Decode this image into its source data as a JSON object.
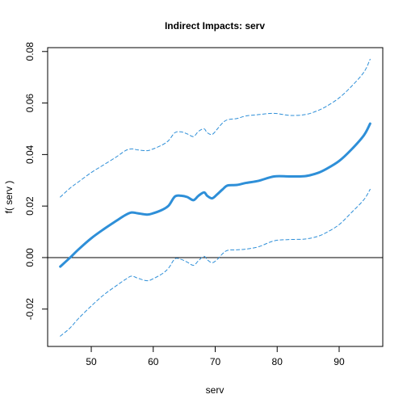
{
  "chart_data": {
    "type": "line",
    "title": "Indirect Impacts:  serv",
    "xlabel": "serv",
    "ylabel": "f( serv )",
    "xlim": [
      42.96,
      97.04
    ],
    "ylim": [
      -0.0345,
      0.0815
    ],
    "x_ticks": [
      50,
      60,
      70,
      80,
      90
    ],
    "y_ticks": [
      -0.02,
      0.0,
      0.02,
      0.04,
      0.06,
      0.08
    ],
    "x_tick_labels": [
      "50",
      "60",
      "70",
      "80",
      "90"
    ],
    "y_tick_labels": [
      "-0.02",
      "0.00",
      "0.02",
      "0.04",
      "0.06",
      "0.08"
    ],
    "reference_line_y": 0.0,
    "grid": false,
    "legend": "none",
    "colors": {
      "series": "#2e8fd8",
      "axis": "#000000",
      "reference": "#000000"
    },
    "x": [
      45.0,
      46.5,
      48.0,
      50.0,
      52.0,
      54.0,
      55.5,
      56.5,
      57.5,
      59.0,
      60.0,
      61.5,
      62.5,
      63.5,
      64.5,
      65.5,
      66.5,
      67.3,
      68.2,
      68.7,
      69.5,
      70.3,
      71.2,
      72.0,
      73.5,
      75.0,
      77.0,
      79.5,
      82.0,
      84.5,
      86.5,
      88.0,
      90.0,
      92.0,
      94.0,
      95.0
    ],
    "series": [
      {
        "role": "estimate",
        "style": "solid",
        "values": [
          -0.0035,
          -0.0002,
          0.0033,
          0.0075,
          0.011,
          0.0142,
          0.0165,
          0.0175,
          0.0172,
          0.0167,
          0.0172,
          0.0186,
          0.0202,
          0.0237,
          0.024,
          0.0235,
          0.0223,
          0.024,
          0.0253,
          0.024,
          0.023,
          0.0245,
          0.0265,
          0.028,
          0.0282,
          0.029,
          0.0298,
          0.0315,
          0.0315,
          0.0316,
          0.0328,
          0.0345,
          0.0375,
          0.042,
          0.0475,
          0.052
        ]
      },
      {
        "role": "upper",
        "style": "dashed",
        "values": [
          0.0235,
          0.0268,
          0.0295,
          0.033,
          0.036,
          0.039,
          0.0415,
          0.0422,
          0.0418,
          0.0415,
          0.0422,
          0.0438,
          0.0455,
          0.0485,
          0.0488,
          0.048,
          0.047,
          0.049,
          0.05,
          0.0485,
          0.0478,
          0.0498,
          0.0523,
          0.0535,
          0.054,
          0.055,
          0.0555,
          0.056,
          0.0552,
          0.0555,
          0.057,
          0.0588,
          0.062,
          0.0665,
          0.072,
          0.077
        ]
      },
      {
        "role": "lower",
        "style": "dashed",
        "values": [
          -0.0305,
          -0.0275,
          -0.0235,
          -0.0188,
          -0.0145,
          -0.011,
          -0.0085,
          -0.0072,
          -0.008,
          -0.009,
          -0.0082,
          -0.0062,
          -0.004,
          -0.0005,
          -0.0007,
          -0.0018,
          -0.003,
          -0.0012,
          0.0005,
          -0.0008,
          -0.002,
          -0.0008,
          0.0015,
          0.0028,
          0.003,
          0.0033,
          0.0042,
          0.0065,
          0.007,
          0.0072,
          0.0082,
          0.0098,
          0.0128,
          0.0175,
          0.0225,
          0.0265
        ]
      }
    ]
  }
}
